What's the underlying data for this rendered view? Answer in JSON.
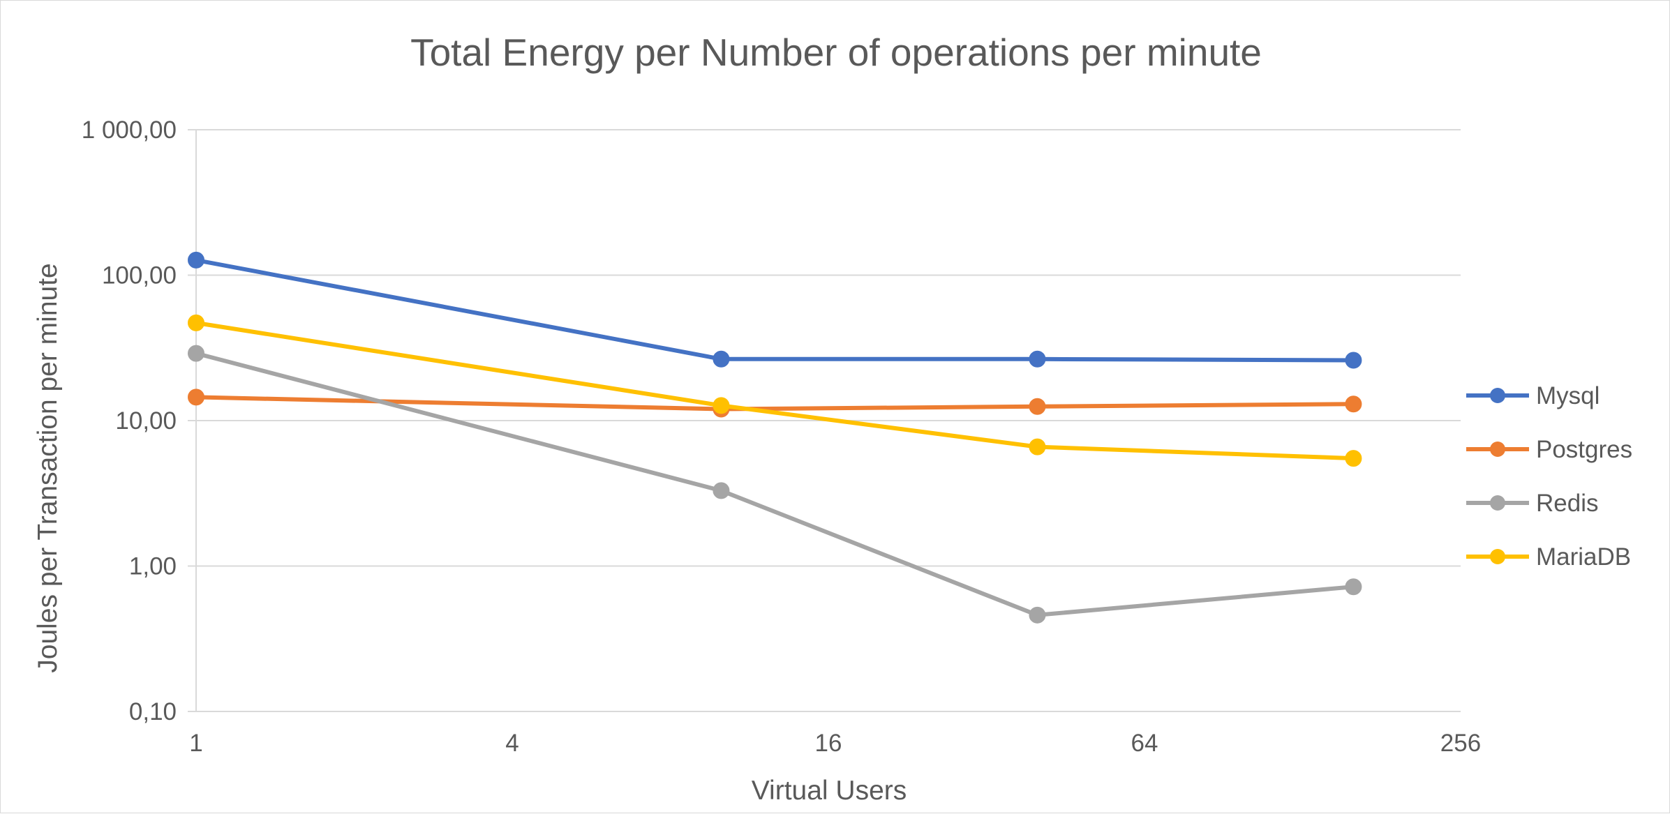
{
  "chart_data": {
    "type": "line",
    "title": "Total Energy per Number of operations per minute",
    "xlabel": "Virtual Users",
    "ylabel": "Joules per Transaction per minute",
    "x_scale": "log2",
    "y_scale": "log10",
    "xlim": [
      1,
      256
    ],
    "ylim": [
      0.1,
      1000
    ],
    "x_ticks": [
      1,
      4,
      16,
      64,
      256
    ],
    "x_tick_labels": [
      "1",
      "4",
      "16",
      "64",
      "256"
    ],
    "y_ticks": [
      0.1,
      1,
      10,
      100,
      1000
    ],
    "y_tick_labels": [
      "0,10",
      "1,00",
      "10,00",
      "100,00",
      "1 000,00"
    ],
    "grid": "horizontal",
    "legend_position": "right",
    "x": [
      1,
      10,
      40,
      160
    ],
    "series": [
      {
        "name": "Mysql",
        "color": "#4472C4",
        "values": [
          127,
          26.5,
          26.5,
          26
        ]
      },
      {
        "name": "Postgres",
        "color": "#ED7D31",
        "values": [
          14.5,
          12,
          12.5,
          13
        ]
      },
      {
        "name": "Redis",
        "color": "#A5A5A5",
        "values": [
          29,
          3.3,
          0.46,
          0.72
        ]
      },
      {
        "name": "MariaDB",
        "color": "#FFC000",
        "values": [
          47,
          12.7,
          6.6,
          5.5
        ]
      }
    ]
  }
}
